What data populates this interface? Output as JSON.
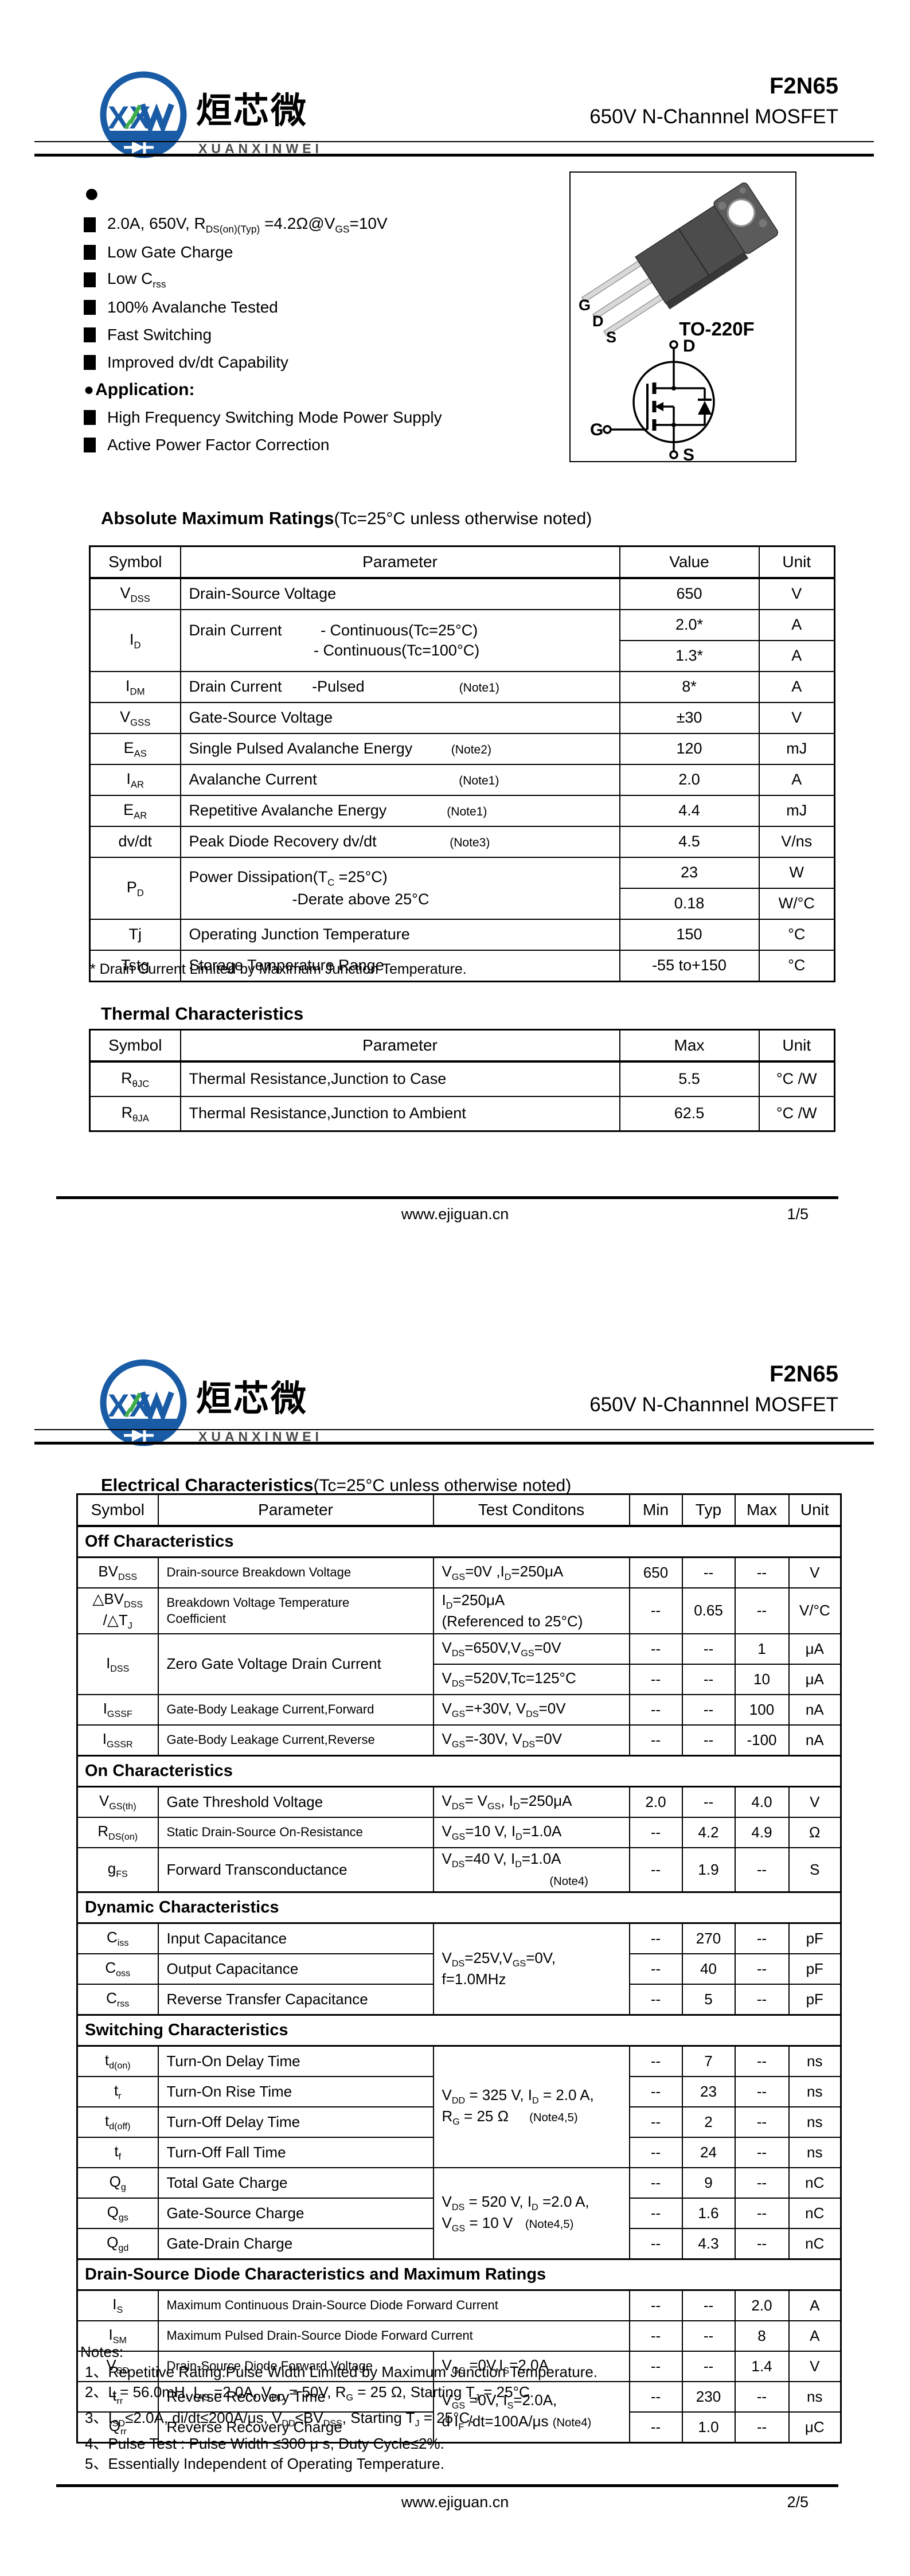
{
  "brand": {
    "chinese": "烜芯微",
    "latin": "XUANXINWEI",
    "part": "F2N65",
    "subtitle": "650V N-Channnel MOSFET"
  },
  "page1": {
    "features_bullet": "●",
    "features": [
      "2.0A, 650V, R~DS(on)(Typ)~ =4.2Ω@V~GS~=10V",
      "Low Gate Charge",
      "Low C~rss~",
      "100% Avalanche Tested",
      "Fast Switching",
      "Improved dv/dt Capability"
    ],
    "application_bullet": "●",
    "application_label": "Application:",
    "applications": [
      "High Frequency Switching Mode Power Supply",
      "Active Power Factor Correction"
    ],
    "package": {
      "label": "TO-220F",
      "pin_g": "G",
      "pin_d": "D",
      "pin_s": "S",
      "sym_d": "D",
      "sym_g": "G",
      "sym_s": "S"
    },
    "amr": {
      "title": "Absolute Maximum Ratings",
      "title_note": "(Tc=25°C unless otherwise noted)",
      "headers": [
        "Symbol",
        "Parameter",
        "Value",
        "Unit"
      ],
      "rows": [
        {
          "cells": [
            {
              "t": "V~DSS~"
            },
            {
              "t": "Drain-Source Voltage",
              "a": "l"
            },
            {
              "t": "650"
            },
            {
              "t": "V"
            }
          ]
        },
        {
          "cells": [
            {
              "t": "I~D~",
              "r": 2
            },
            {
              "t": "Drain Current         - Continuous(Tc=25°C)\n                             - Continuous(Tc=100°C)",
              "a": "l",
              "r": 2
            },
            {
              "t": "2.0*"
            },
            {
              "t": "A"
            }
          ]
        },
        {
          "cells": [
            {
              "t": "1.3*"
            },
            {
              "t": "A"
            }
          ]
        },
        {
          "cells": [
            {
              "t": "I~DM~"
            },
            {
              "t": "Drain Current       -Pulsed                      (Note1)",
              "a": "l"
            },
            {
              "t": "8*"
            },
            {
              "t": "A"
            }
          ]
        },
        {
          "cells": [
            {
              "t": "V~GSS~"
            },
            {
              "t": "Gate-Source Voltage",
              "a": "l"
            },
            {
              "t": "±30"
            },
            {
              "t": "V"
            }
          ]
        },
        {
          "cells": [
            {
              "t": "E~AS~"
            },
            {
              "t": "Single Pulsed Avalanche Energy         (Note2)",
              "a": "l"
            },
            {
              "t": "120"
            },
            {
              "t": "mJ"
            }
          ]
        },
        {
          "cells": [
            {
              "t": "I~AR~"
            },
            {
              "t": "Avalanche Current                                 (Note1)",
              "a": "l"
            },
            {
              "t": "2.0"
            },
            {
              "t": "A"
            }
          ]
        },
        {
          "cells": [
            {
              "t": "E~AR~"
            },
            {
              "t": "Repetitive Avalanche Energy              (Note1)",
              "a": "l"
            },
            {
              "t": "4.4"
            },
            {
              "t": "mJ"
            }
          ]
        },
        {
          "cells": [
            {
              "t": "dv/dt"
            },
            {
              "t": "Peak Diode Recovery dv/dt                 (Note3)",
              "a": "l"
            },
            {
              "t": "4.5"
            },
            {
              "t": "V/ns"
            }
          ]
        },
        {
          "cells": [
            {
              "t": "P~D~",
              "r": 2
            },
            {
              "t": "Power Dissipation(T~C~ =25°C)\n                        -Derate above 25°C",
              "a": "l",
              "r": 2
            },
            {
              "t": "23"
            },
            {
              "t": "W"
            }
          ]
        },
        {
          "cells": [
            {
              "t": "0.18"
            },
            {
              "t": "W/°C"
            }
          ]
        },
        {
          "cells": [
            {
              "t": "Tj"
            },
            {
              "t": "Operating Junction Temperature",
              "a": "l"
            },
            {
              "t": "150"
            },
            {
              "t": "°C"
            }
          ]
        },
        {
          "cells": [
            {
              "t": "Tstg"
            },
            {
              "t": "Storage Temperature Range",
              "a": "l"
            },
            {
              "t": "-55 to+150"
            },
            {
              "t": "°C"
            }
          ]
        }
      ]
    },
    "footnote": "* Drain Current Limited by Maximum Junction Temperature.",
    "thermal": {
      "title": "Thermal Characteristics",
      "headers": [
        "Symbol",
        "Parameter",
        "Max",
        "Unit"
      ],
      "rows": [
        {
          "cells": [
            {
              "t": "R~θJC~"
            },
            {
              "t": "Thermal Resistance,Junction to Case",
              "a": "l"
            },
            {
              "t": "5.5"
            },
            {
              "t": "°C /W"
            }
          ]
        },
        {
          "cells": [
            {
              "t": "R~θJA~"
            },
            {
              "t": "Thermal Resistance,Junction to Ambient",
              "a": "l"
            },
            {
              "t": "62.5"
            },
            {
              "t": "°C /W"
            }
          ]
        }
      ]
    },
    "footer": {
      "site": "www.ejiguan.cn",
      "page": "1/5"
    }
  },
  "page2": {
    "elec": {
      "title": "Electrical Characteristics",
      "title_note": "(Tc=25°C unless otherwise noted)",
      "headers": [
        "Symbol",
        "Parameter",
        "Test Conditons",
        "Min",
        "Typ",
        "Max",
        "Unit"
      ],
      "rows": [
        {
          "section": "Off Characteristics"
        },
        {
          "cells": [
            {
              "t": "BV~DSS~"
            },
            {
              "t": "Drain-source Breakdown Voltage",
              "a": "l",
              "cls": "sm"
            },
            {
              "t": "V~GS~=0V ,I~D~=250μA",
              "a": "l"
            },
            {
              "t": "650"
            },
            {
              "t": "--"
            },
            {
              "t": "--"
            },
            {
              "t": "V"
            }
          ]
        },
        {
          "cells": [
            {
              "t": "△BV~DSS~\n/△T~J~"
            },
            {
              "t": "Breakdown Voltage Temperature\nCoefficient",
              "a": "l",
              "cls": "sm"
            },
            {
              "t": "I~D~=250μA\n(Referenced to 25°C)",
              "a": "l"
            },
            {
              "t": "--"
            },
            {
              "t": "0.65"
            },
            {
              "t": "--"
            },
            {
              "t": "V/°C"
            }
          ]
        },
        {
          "cells": [
            {
              "t": "I~DSS~",
              "r": 2
            },
            {
              "t": "Zero Gate Voltage Drain Current",
              "a": "l",
              "r": 2
            },
            {
              "t": "V~DS~=650V,V~GS~=0V",
              "a": "l"
            },
            {
              "t": "--"
            },
            {
              "t": "--"
            },
            {
              "t": "1"
            },
            {
              "t": "μA"
            }
          ]
        },
        {
          "cells": [
            {
              "t": "V~DS~=520V,Tc=125°C",
              "a": "l"
            },
            {
              "t": "--"
            },
            {
              "t": "--"
            },
            {
              "t": "10"
            },
            {
              "t": "μA"
            }
          ]
        },
        {
          "cells": [
            {
              "t": "I~GSSF~"
            },
            {
              "t": "Gate-Body Leakage Current,Forward",
              "a": "l",
              "cls": "sm"
            },
            {
              "t": "V~GS~=+30V, V~DS~=0V",
              "a": "l"
            },
            {
              "t": "--"
            },
            {
              "t": "--"
            },
            {
              "t": "100"
            },
            {
              "t": "nA"
            }
          ]
        },
        {
          "cells": [
            {
              "t": "I~GSSR~"
            },
            {
              "t": "Gate-Body Leakage Current,Reverse",
              "a": "l",
              "cls": "sm"
            },
            {
              "t": "V~GS~=-30V, V~DS~=0V",
              "a": "l"
            },
            {
              "t": "--"
            },
            {
              "t": "--"
            },
            {
              "t": "-100"
            },
            {
              "t": "nA"
            }
          ]
        },
        {
          "section": "On Characteristics"
        },
        {
          "cells": [
            {
              "t": "V~GS(th)~"
            },
            {
              "t": "Gate Threshold Voltage",
              "a": "l"
            },
            {
              "t": "V~DS~= V~GS~, I~D~=250μA",
              "a": "l"
            },
            {
              "t": "2.0"
            },
            {
              "t": "--"
            },
            {
              "t": "4.0"
            },
            {
              "t": "V"
            }
          ]
        },
        {
          "cells": [
            {
              "t": "R~DS(on)~"
            },
            {
              "t": "Static Drain-Source On-Resistance",
              "a": "l",
              "cls": "sm"
            },
            {
              "t": "V~GS~=10 V, I~D~=1.0A",
              "a": "l"
            },
            {
              "t": "--"
            },
            {
              "t": "4.2"
            },
            {
              "t": "4.9"
            },
            {
              "t": "Ω"
            }
          ]
        },
        {
          "cells": [
            {
              "t": "g~FS~"
            },
            {
              "t": "Forward Transconductance",
              "a": "l"
            },
            {
              "t": "V~DS~=40 V, I~D~=1.0A\n                          (Note4)",
              "a": "l"
            },
            {
              "t": "--"
            },
            {
              "t": "1.9"
            },
            {
              "t": "--"
            },
            {
              "t": "S"
            }
          ]
        },
        {
          "section": "Dynamic Characteristics"
        },
        {
          "cells": [
            {
              "t": "C~iss~"
            },
            {
              "t": "Input Capacitance",
              "a": "l"
            },
            {
              "t": "V~DS~=25V,V~GS~=0V,\nf=1.0MHz",
              "a": "l",
              "r": 3
            },
            {
              "t": "--"
            },
            {
              "t": "270"
            },
            {
              "t": "--"
            },
            {
              "t": "pF"
            }
          ]
        },
        {
          "cells": [
            {
              "t": "C~oss~"
            },
            {
              "t": "Output Capacitance",
              "a": "l"
            },
            {
              "t": "--"
            },
            {
              "t": "40"
            },
            {
              "t": "--"
            },
            {
              "t": "pF"
            }
          ]
        },
        {
          "cells": [
            {
              "t": "C~rss~"
            },
            {
              "t": "Reverse Transfer Capacitance",
              "a": "l"
            },
            {
              "t": "--"
            },
            {
              "t": "5"
            },
            {
              "t": "--"
            },
            {
              "t": "pF"
            }
          ]
        },
        {
          "section": "Switching Characteristics"
        },
        {
          "cells": [
            {
              "t": "t~d(on)~"
            },
            {
              "t": "Turn-On Delay Time",
              "a": "l"
            },
            {
              "t": "V~DD~ = 325 V, I~D~ = 2.0 A,\nR~G~ = 25 Ω     (Note4,5)",
              "a": "l",
              "r": 4
            },
            {
              "t": "--"
            },
            {
              "t": "7"
            },
            {
              "t": "--"
            },
            {
              "t": "ns"
            }
          ]
        },
        {
          "cells": [
            {
              "t": "t~r~"
            },
            {
              "t": "Turn-On Rise Time",
              "a": "l"
            },
            {
              "t": "--"
            },
            {
              "t": "23"
            },
            {
              "t": "--"
            },
            {
              "t": "ns"
            }
          ]
        },
        {
          "cells": [
            {
              "t": "t~d(off)~"
            },
            {
              "t": "Turn-Off Delay Time",
              "a": "l"
            },
            {
              "t": "--"
            },
            {
              "t": "2"
            },
            {
              "t": "--"
            },
            {
              "t": "ns"
            }
          ]
        },
        {
          "cells": [
            {
              "t": "t~f~"
            },
            {
              "t": "Turn-Off Fall Time",
              "a": "l"
            },
            {
              "t": "--"
            },
            {
              "t": "24"
            },
            {
              "t": "--"
            },
            {
              "t": "ns"
            }
          ]
        },
        {
          "cells": [
            {
              "t": "Q~g~"
            },
            {
              "t": "Total Gate Charge",
              "a": "l"
            },
            {
              "t": "V~DS~ = 520 V, I~D~ =2.0 A,\nV~GS~ = 10 V   (Note4,5)",
              "a": "l",
              "r": 3
            },
            {
              "t": "--"
            },
            {
              "t": "9"
            },
            {
              "t": "--"
            },
            {
              "t": "nC"
            }
          ]
        },
        {
          "cells": [
            {
              "t": "Q~gs~"
            },
            {
              "t": "Gate-Source Charge",
              "a": "l"
            },
            {
              "t": "--"
            },
            {
              "t": "1.6"
            },
            {
              "t": "--"
            },
            {
              "t": "nC"
            }
          ]
        },
        {
          "cells": [
            {
              "t": "Q~gd~"
            },
            {
              "t": "Gate-Drain Charge",
              "a": "l"
            },
            {
              "t": "--"
            },
            {
              "t": "4.3"
            },
            {
              "t": "--"
            },
            {
              "t": "nC"
            }
          ]
        },
        {
          "section": "Drain-Source Diode Characteristics and Maximum Ratings"
        },
        {
          "cells": [
            {
              "t": "I~S~"
            },
            {
              "t": "Maximum Continuous Drain-Source Diode Forward Current",
              "a": "l",
              "c": 2,
              "cls": "sm"
            },
            {
              "t": "--"
            },
            {
              "t": "--"
            },
            {
              "t": "2.0"
            },
            {
              "t": "A"
            }
          ]
        },
        {
          "cells": [
            {
              "t": "I~SM~"
            },
            {
              "t": "Maximum Pulsed Drain-Source Diode Forward Current",
              "a": "l",
              "c": 2,
              "cls": "sm"
            },
            {
              "t": "--"
            },
            {
              "t": "--"
            },
            {
              "t": "8"
            },
            {
              "t": "A"
            }
          ]
        },
        {
          "cells": [
            {
              "t": "V~SD~"
            },
            {
              "t": "Drain-Source Diode Forward Voltage",
              "a": "l",
              "cls": "sm"
            },
            {
              "t": "V~GS~ =0V,I~S~=2.0A",
              "a": "l"
            },
            {
              "t": "--"
            },
            {
              "t": "--"
            },
            {
              "t": "1.4"
            },
            {
              "t": "V"
            }
          ]
        },
        {
          "cells": [
            {
              "t": "t~rr~"
            },
            {
              "t": "Reverse Recovery Time",
              "a": "l"
            },
            {
              "t": "V~GS~ =0V, I~S~=2.0A,\nd I~F~ /dt=100A/μs (Note4)",
              "a": "l",
              "r": 2
            },
            {
              "t": "--"
            },
            {
              "t": "230"
            },
            {
              "t": "--"
            },
            {
              "t": "ns"
            }
          ]
        },
        {
          "cells": [
            {
              "t": "Q~rr~"
            },
            {
              "t": "Reverse Recovery Charge",
              "a": "l"
            },
            {
              "t": "--"
            },
            {
              "t": "1.0"
            },
            {
              "t": "--"
            },
            {
              "t": "μC"
            }
          ]
        }
      ]
    },
    "notes": {
      "label": "Notes:",
      "items": [
        "1、Repetitive Rating:Pulse Width Limited by Maximum Junction Temperature.",
        "2、L = 56.0mH, I~AS~ =2.0A, V~DD~ = 50V, R~G~ = 25 Ω, Starting T~J~ = 25°C.",
        "3、I~SD~≤2.0A, di/dt≤200A/μs, V~DD~≤BV~DSS~, Starting T~J~ = 25°C.",
        "4、Pulse Test : Pulse Width ≤300 μ s, Duty Cycle≤2%.",
        "5、Essentially Independent of Operating Temperature."
      ]
    },
    "footer": {
      "site": "www.ejiguan.cn",
      "page": "2/5"
    }
  }
}
